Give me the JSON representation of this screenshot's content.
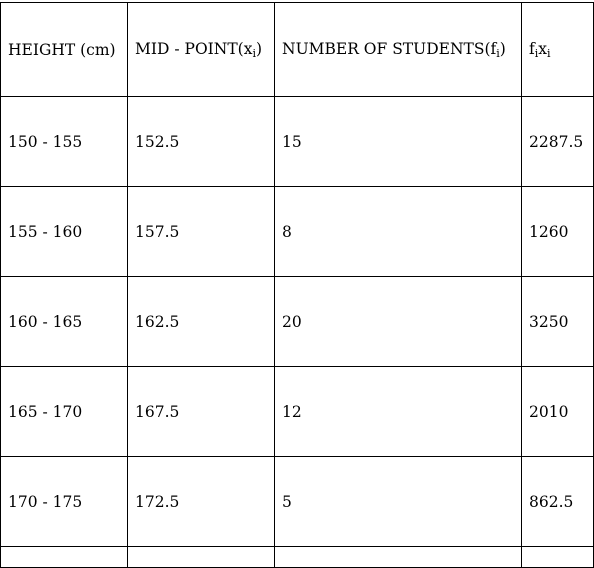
{
  "table": {
    "headers": {
      "height": "HEIGHT (cm)",
      "midpoint_prefix": "MID - POINT(x",
      "midpoint_sub": "i",
      "midpoint_suffix": ")",
      "students_prefix": "NUMBER OF STUDENTS(f",
      "students_sub": "i",
      "students_suffix": ")",
      "fixi_f": "f",
      "fixi_sub1": "i",
      "fixi_x": "x",
      "fixi_sub2": "i"
    },
    "rows": [
      {
        "height": "150 - 155",
        "midpoint": "152.5",
        "students": "15",
        "fixi": "2287.5"
      },
      {
        "height": "155 - 160",
        "midpoint": "157.5",
        "students": "8",
        "fixi": "1260"
      },
      {
        "height": "160 - 165",
        "midpoint": "162.5",
        "students": "20",
        "fixi": "3250"
      },
      {
        "height": "165 - 170",
        "midpoint": "167.5",
        "students": "12",
        "fixi": "2010"
      },
      {
        "height": "170 - 175",
        "midpoint": "172.5",
        "students": "5",
        "fixi": "862.5"
      }
    ]
  }
}
